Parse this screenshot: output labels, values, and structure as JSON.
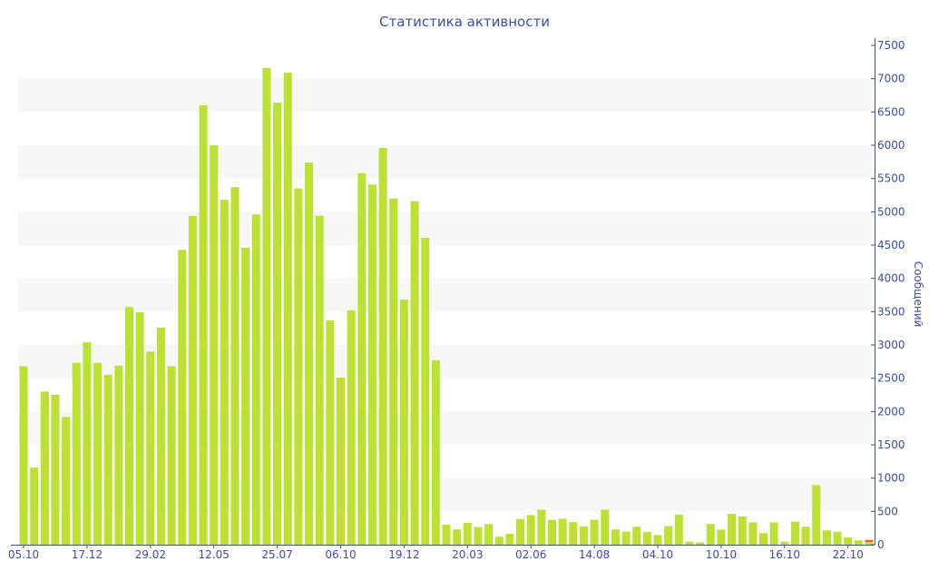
{
  "chart_data": {
    "type": "bar",
    "title": "Статистика активности",
    "ylabel": "Сообщений",
    "xlabel": "",
    "ylim": [
      0,
      7500
    ],
    "y_ticks": [
      0,
      500,
      1000,
      1500,
      2000,
      2500,
      3000,
      3500,
      4000,
      4500,
      5000,
      5500,
      6000,
      6500,
      7000,
      7500
    ],
    "y_axis_side": "right",
    "grid": "alternating horizontal bands",
    "stacked": true,
    "x_tick_labels": [
      "05.10",
      "17.12",
      "29.02",
      "12.05",
      "25.07",
      "06.10",
      "19.12",
      "20.03",
      "02.06",
      "14.08",
      "04.10",
      "10.10",
      "16.10",
      "22.10"
    ],
    "x_tick_every_n_bars": 6,
    "series": [
      {
        "color": "#bde132",
        "values": [
          2680,
          1160,
          2300,
          2250,
          1920,
          2730,
          3040,
          2730,
          2550,
          2690,
          3570,
          3490,
          2900,
          3260,
          2680,
          4430,
          4940,
          6600,
          6000,
          5180,
          5370,
          4460,
          4960,
          7160,
          6640,
          7090,
          5350,
          5740,
          4940,
          3370,
          2510,
          3520,
          5580,
          5410,
          5960,
          5200,
          3680,
          5160,
          4610,
          2770,
          300,
          230,
          330,
          265,
          310,
          120,
          165,
          385,
          445,
          525,
          375,
          390,
          340,
          275,
          375,
          525,
          230,
          195,
          270,
          190,
          145,
          280,
          450,
          45,
          35,
          310,
          225,
          465,
          425,
          335,
          175,
          335,
          45,
          345,
          270,
          895,
          215,
          195,
          110,
          65,
          40
        ]
      },
      {
        "color": "#e8622c",
        "values": [
          0,
          0,
          0,
          0,
          0,
          0,
          0,
          0,
          0,
          0,
          0,
          0,
          0,
          0,
          0,
          0,
          0,
          0,
          0,
          0,
          0,
          0,
          0,
          0,
          0,
          0,
          0,
          0,
          0,
          0,
          0,
          0,
          0,
          0,
          0,
          0,
          0,
          0,
          0,
          0,
          0,
          0,
          0,
          0,
          0,
          0,
          0,
          0,
          0,
          0,
          0,
          0,
          0,
          0,
          0,
          0,
          0,
          0,
          0,
          0,
          0,
          0,
          0,
          0,
          0,
          0,
          0,
          0,
          0,
          0,
          0,
          0,
          0,
          0,
          0,
          0,
          0,
          0,
          0,
          0,
          32
        ]
      }
    ],
    "colors": {
      "text": "#3d4f9f",
      "axis": "#3d4f9f",
      "band": "#f7f7f7"
    }
  }
}
